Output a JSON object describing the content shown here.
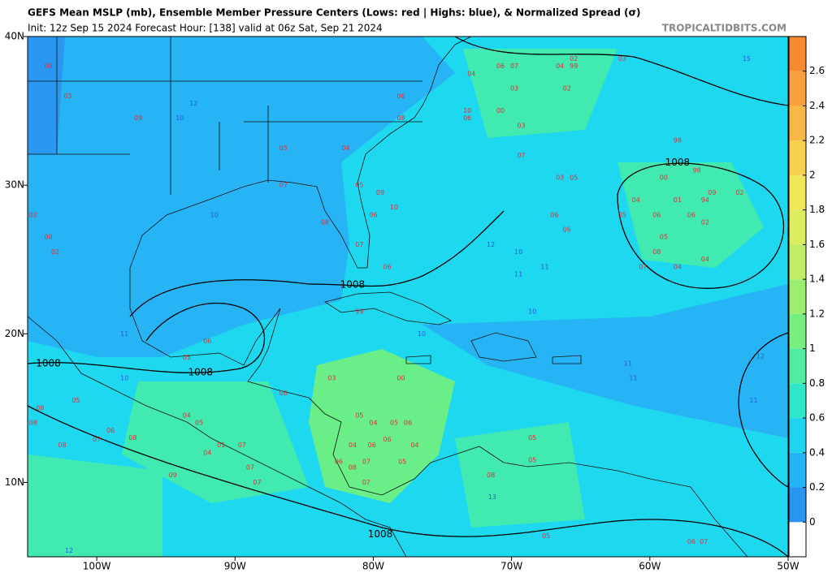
{
  "header": {
    "title": "GEFS Mean MSLP (mb), Ensemble Member Pressure Centers (Lows: red | Highs: blue), & Normalized Spread (σ)",
    "subtitle": "Init: 12z Sep 15 2024   Forecast Hour: [138]   valid at 06z Sat, Sep 21 2024",
    "watermark": "TROPICALTIDBITS.COM"
  },
  "map": {
    "lonlim": [
      -105,
      -50
    ],
    "latlim": [
      5,
      40
    ],
    "xticks": [
      {
        "value": -100,
        "label": "100W"
      },
      {
        "value": -90,
        "label": "90W"
      },
      {
        "value": -80,
        "label": "80W"
      },
      {
        "value": -70,
        "label": "70W"
      },
      {
        "value": -60,
        "label": "60W"
      },
      {
        "value": -50,
        "label": "50W"
      }
    ],
    "yticks": [
      {
        "value": 10,
        "label": "10N"
      },
      {
        "value": 20,
        "label": "20N"
      },
      {
        "value": 30,
        "label": "30N"
      },
      {
        "value": 40,
        "label": "40N"
      }
    ],
    "low_color": "#e0303a",
    "high_color": "#2a5ad8",
    "lows": [
      {
        "label": "04",
        "lon": -80.0,
        "lat": 14.0
      },
      {
        "label": "05",
        "lon": -81.0,
        "lat": 14.5
      },
      {
        "label": "05",
        "lon": -78.5,
        "lat": 14.0
      },
      {
        "label": "06",
        "lon": -77.5,
        "lat": 14.0
      },
      {
        "label": "04",
        "lon": -81.5,
        "lat": 12.5
      },
      {
        "label": "06",
        "lon": -80.1,
        "lat": 12.5
      },
      {
        "label": "06",
        "lon": -79.0,
        "lat": 12.9
      },
      {
        "label": "04",
        "lon": -77.0,
        "lat": 12.5
      },
      {
        "label": "05",
        "lon": -77.9,
        "lat": 11.4
      },
      {
        "label": "07",
        "lon": -80.5,
        "lat": 11.4
      },
      {
        "label": "08",
        "lon": -81.5,
        "lat": 11.0
      },
      {
        "label": "06",
        "lon": -82.5,
        "lat": 11.4
      },
      {
        "label": "07",
        "lon": -80.5,
        "lat": 10.0
      },
      {
        "label": "03",
        "lon": -83.0,
        "lat": 17.0
      },
      {
        "label": "00",
        "lon": -78.0,
        "lat": 17.0
      },
      {
        "label": "99",
        "lon": -81.0,
        "lat": 21.5
      },
      {
        "label": "01",
        "lon": -91.0,
        "lat": 12.5
      },
      {
        "label": "07",
        "lon": -89.5,
        "lat": 12.5
      },
      {
        "label": "04",
        "lon": -92.0,
        "lat": 12.0
      },
      {
        "label": "07",
        "lon": -88.9,
        "lat": 11.0
      },
      {
        "label": "04",
        "lon": -93.5,
        "lat": 14.5
      },
      {
        "label": "05",
        "lon": -92.6,
        "lat": 14.0
      },
      {
        "label": "08",
        "lon": -97.4,
        "lat": 13.0
      },
      {
        "label": "06",
        "lon": -99.0,
        "lat": 13.5
      },
      {
        "label": "05",
        "lon": -101.5,
        "lat": 15.5
      },
      {
        "label": "08",
        "lon": -104.1,
        "lat": 15.0
      },
      {
        "label": "08",
        "lon": -104.6,
        "lat": 14.0
      },
      {
        "label": "08",
        "lon": -102.5,
        "lat": 12.5
      },
      {
        "label": "07",
        "lon": -100.0,
        "lat": 12.9
      },
      {
        "label": "09",
        "lon": -94.5,
        "lat": 10.5
      },
      {
        "label": "07",
        "lon": -88.4,
        "lat": 10.0
      },
      {
        "label": "05",
        "lon": -93.5,
        "lat": 18.4
      },
      {
        "label": "06",
        "lon": -92.0,
        "lat": 19.5
      },
      {
        "label": "06",
        "lon": -86.5,
        "lat": 16.0
      },
      {
        "label": "05",
        "lon": -68.5,
        "lat": 13.0
      },
      {
        "label": "05",
        "lon": -68.5,
        "lat": 11.5
      },
      {
        "label": "08",
        "lon": -71.5,
        "lat": 10.5
      },
      {
        "label": "05",
        "lon": -67.5,
        "lat": 6.4
      },
      {
        "label": "06",
        "lon": -57.0,
        "lat": 6.0
      },
      {
        "label": "07",
        "lon": -56.1,
        "lat": 6.0
      },
      {
        "label": "01",
        "lon": -58.0,
        "lat": 29.0
      },
      {
        "label": "00",
        "lon": -59.0,
        "lat": 30.5
      },
      {
        "label": "98",
        "lon": -56.6,
        "lat": 31.0
      },
      {
        "label": "09",
        "lon": -55.5,
        "lat": 29.5
      },
      {
        "label": "94",
        "lon": -56.0,
        "lat": 29.0
      },
      {
        "label": "02",
        "lon": -53.5,
        "lat": 29.5
      },
      {
        "label": "98",
        "lon": -58.0,
        "lat": 33.0
      },
      {
        "label": "04",
        "lon": -61.0,
        "lat": 29.0
      },
      {
        "label": "05",
        "lon": -62.0,
        "lat": 28.0
      },
      {
        "label": "06",
        "lon": -59.5,
        "lat": 28.0
      },
      {
        "label": "06",
        "lon": -57.0,
        "lat": 28.0
      },
      {
        "label": "02",
        "lon": -56.0,
        "lat": 27.5
      },
      {
        "label": "05",
        "lon": -59.0,
        "lat": 26.5
      },
      {
        "label": "08",
        "lon": -59.5,
        "lat": 25.5
      },
      {
        "label": "07",
        "lon": -60.5,
        "lat": 24.5
      },
      {
        "label": "04",
        "lon": -58.0,
        "lat": 24.5
      },
      {
        "label": "04",
        "lon": -56.0,
        "lat": 25.0
      },
      {
        "label": "06",
        "lon": -66.9,
        "lat": 28.0
      },
      {
        "label": "06",
        "lon": -66.0,
        "lat": 27.0
      },
      {
        "label": "03",
        "lon": -66.5,
        "lat": 30.5
      },
      {
        "label": "05",
        "lon": -65.5,
        "lat": 30.5
      },
      {
        "label": "07",
        "lon": -69.3,
        "lat": 32.0
      },
      {
        "label": "03",
        "lon": -69.3,
        "lat": 34.0
      },
      {
        "label": "00",
        "lon": -70.8,
        "lat": 35.0
      },
      {
        "label": "10",
        "lon": -73.2,
        "lat": 35.0
      },
      {
        "label": "06",
        "lon": -73.2,
        "lat": 34.5
      },
      {
        "label": "03",
        "lon": -69.8,
        "lat": 36.5
      },
      {
        "label": "06",
        "lon": -70.8,
        "lat": 38.0
      },
      {
        "label": "07",
        "lon": -69.8,
        "lat": 38.0
      },
      {
        "label": "04",
        "lon": -66.5,
        "lat": 38.0
      },
      {
        "label": "02",
        "lon": -65.5,
        "lat": 38.5
      },
      {
        "label": "99",
        "lon": -65.5,
        "lat": 38.0
      },
      {
        "label": "02",
        "lon": -66.0,
        "lat": 36.5
      },
      {
        "label": "03",
        "lon": -62.0,
        "lat": 38.5
      },
      {
        "label": "04",
        "lon": -72.9,
        "lat": 37.5
      },
      {
        "label": "06",
        "lon": -78.0,
        "lat": 36.0
      },
      {
        "label": "08",
        "lon": -78.0,
        "lat": 34.5
      },
      {
        "label": "05",
        "lon": -86.5,
        "lat": 32.5
      },
      {
        "label": "07",
        "lon": -86.5,
        "lat": 30.0
      },
      {
        "label": "04",
        "lon": -82.0,
        "lat": 32.5
      },
      {
        "label": "05",
        "lon": -81.0,
        "lat": 30.0
      },
      {
        "label": "09",
        "lon": -79.5,
        "lat": 29.5
      },
      {
        "label": "10",
        "lon": -78.5,
        "lat": 28.5
      },
      {
        "label": "06",
        "lon": -80.0,
        "lat": 28.0
      },
      {
        "label": "08",
        "lon": -83.5,
        "lat": 27.5
      },
      {
        "label": "07",
        "lon": -81.0,
        "lat": 26.0
      },
      {
        "label": "06",
        "lon": -79.0,
        "lat": 24.5
      },
      {
        "label": "09",
        "lon": -97.0,
        "lat": 34.5
      },
      {
        "label": "00",
        "lon": -103.5,
        "lat": 38.0
      },
      {
        "label": "03",
        "lon": -102.1,
        "lat": 36.0
      },
      {
        "label": "02",
        "lon": -104.6,
        "lat": 28.0
      },
      {
        "label": "00",
        "lon": -103.5,
        "lat": 26.5
      },
      {
        "label": "02",
        "lon": -103.0,
        "lat": 25.5
      }
    ],
    "highs": [
      {
        "label": "12",
        "lon": -93.0,
        "lat": 35.5
      },
      {
        "label": "10",
        "lon": -94.0,
        "lat": 34.5
      },
      {
        "label": "10",
        "lon": -91.5,
        "lat": 28.0
      },
      {
        "label": "12",
        "lon": -71.5,
        "lat": 26.0
      },
      {
        "label": "10",
        "lon": -69.5,
        "lat": 25.5
      },
      {
        "label": "11",
        "lon": -67.6,
        "lat": 24.5
      },
      {
        "label": "11",
        "lon": -69.5,
        "lat": 24.0
      },
      {
        "label": "10",
        "lon": -68.5,
        "lat": 21.5
      },
      {
        "label": "10",
        "lon": -76.5,
        "lat": 20.0
      },
      {
        "label": "11",
        "lon": -61.6,
        "lat": 18.0
      },
      {
        "label": "11",
        "lon": -61.2,
        "lat": 17.0
      },
      {
        "label": "12",
        "lon": -52.0,
        "lat": 18.5
      },
      {
        "label": "11",
        "lon": -52.5,
        "lat": 15.5
      },
      {
        "label": "15",
        "lon": -53.0,
        "lat": 38.5
      },
      {
        "label": "10",
        "lon": -98.0,
        "lat": 17.0
      },
      {
        "label": "12",
        "lon": -102.0,
        "lat": 5.4
      },
      {
        "label": "11",
        "lon": -98.0,
        "lat": 20.0
      },
      {
        "label": "13",
        "lon": -71.4,
        "lat": 9.0
      }
    ],
    "isobar_labels": [
      {
        "label": "1008",
        "lon": -58.0,
        "lat": 31.5
      },
      {
        "label": "1008",
        "lon": -81.5,
        "lat": 23.3
      },
      {
        "label": "1008",
        "lon": -92.5,
        "lat": 17.4
      },
      {
        "label": "1008",
        "lon": -79.5,
        "lat": 6.5
      },
      {
        "label": "1008",
        "lon": -103.5,
        "lat": 18.0
      }
    ]
  },
  "colorbar": {
    "ylim": [
      -0.2,
      2.8
    ],
    "ticks": [
      0,
      0.2,
      0.4,
      0.6,
      0.8,
      1,
      1.2,
      1.4,
      1.6,
      1.8,
      2,
      2.2,
      2.4,
      2.6
    ],
    "colors": [
      "#ffffff",
      "#2a95f0",
      "#22b4f5",
      "#20d4f0",
      "#30e6c8",
      "#50eca0",
      "#78ee80",
      "#9cee70",
      "#c0ee68",
      "#dcee60",
      "#f0e858",
      "#f6d050",
      "#f8b848",
      "#f8a040",
      "#f68a30"
    ]
  }
}
